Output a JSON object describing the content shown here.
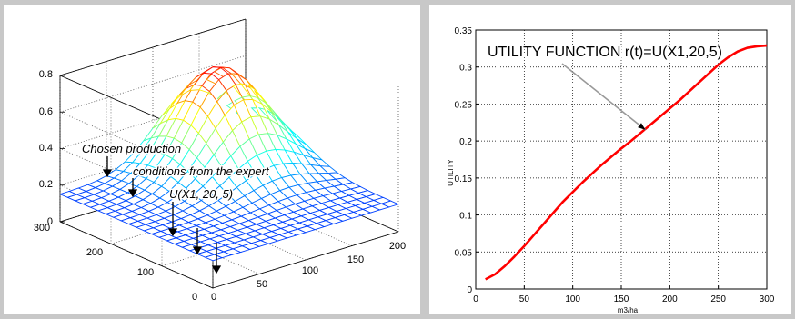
{
  "chart_data": [
    {
      "type": "surface",
      "axes": {
        "z_ticks": [
          "0",
          "0.2",
          "0.4",
          "0.6",
          "0.8"
        ],
        "y_ticks": [
          "0",
          "100",
          "200",
          "300"
        ],
        "x_ticks": [
          "0",
          "50",
          "100",
          "150",
          "200"
        ],
        "x_range": [
          0,
          200
        ],
        "y_range": [
          0,
          300
        ],
        "z_range": [
          0,
          0.8
        ],
        "grid": true
      },
      "surface_model": {
        "description_hidden": "",
        "base": 0.15,
        "peak": 0.7,
        "x_center": 140,
        "x_width": 55,
        "y_center": 240,
        "y_width": 90
      },
      "annotations": {
        "line1": "Chosen production",
        "line2": "conditions from the expert",
        "line3": "U(X1, 20, 5)"
      },
      "colormap": "jet"
    },
    {
      "type": "line",
      "title": "UTILITY FUNCTION r(t)=U(X1,20,5)",
      "xlabel": "m3/ha",
      "ylabel": "UTILITY",
      "xlim": [
        0,
        300
      ],
      "ylim": [
        0,
        0.35
      ],
      "x_ticks": [
        "0",
        "50",
        "100",
        "150",
        "200",
        "250",
        "300"
      ],
      "y_ticks": [
        "0",
        "0.05",
        "0.1",
        "0.15",
        "0.2",
        "0.25",
        "0.3",
        "0.35"
      ],
      "grid": true,
      "series": [
        {
          "color": "#ff0000",
          "x": [
            10,
            20,
            30,
            40,
            50,
            60,
            70,
            80,
            90,
            100,
            110,
            120,
            130,
            140,
            150,
            160,
            170,
            180,
            190,
            200,
            210,
            220,
            230,
            240,
            250,
            260,
            270,
            280,
            290,
            300
          ],
          "y": [
            0.013,
            0.02,
            0.031,
            0.044,
            0.058,
            0.073,
            0.088,
            0.103,
            0.118,
            0.131,
            0.144,
            0.156,
            0.168,
            0.179,
            0.19,
            0.2,
            0.211,
            0.222,
            0.233,
            0.244,
            0.255,
            0.267,
            0.279,
            0.291,
            0.303,
            0.313,
            0.321,
            0.326,
            0.328,
            0.329
          ]
        }
      ],
      "arrow_target": [
        175,
        0.215
      ]
    }
  ]
}
